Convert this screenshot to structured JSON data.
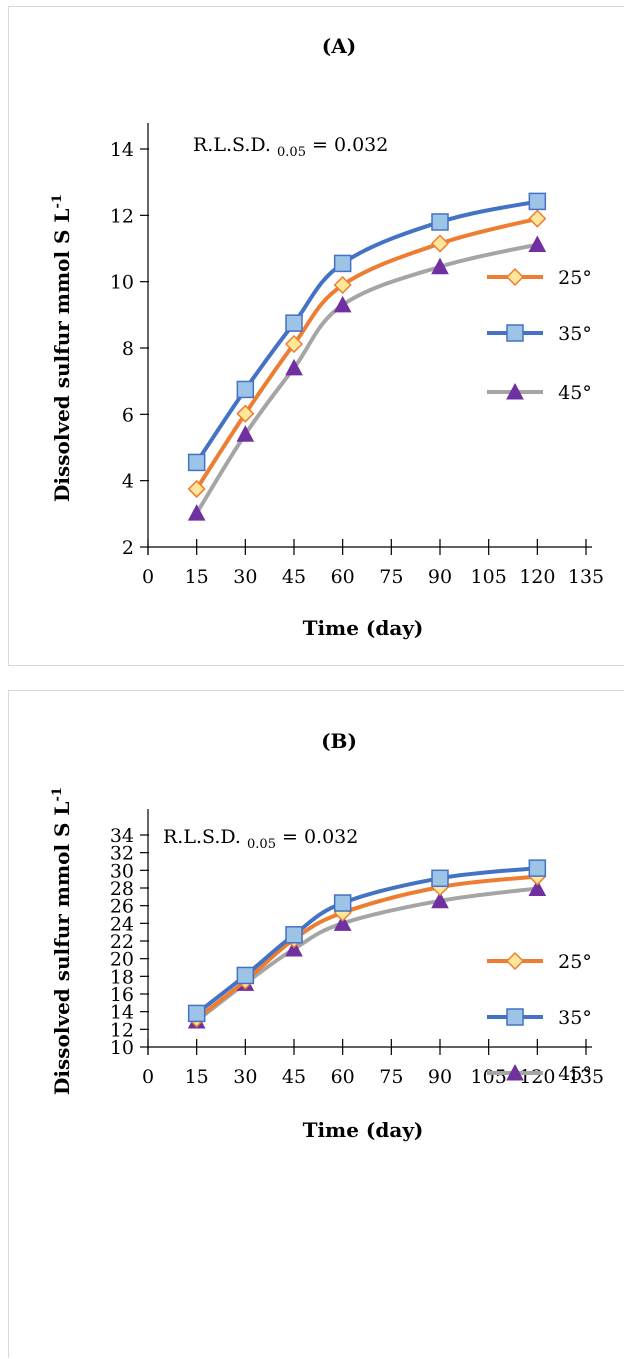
{
  "charts": [
    {
      "title": "(A)",
      "annotation": {
        "prefix": "R.L.S.D. ",
        "sub": "0.05",
        "suffix": " = 0.032"
      },
      "xlabel": "Time (day)",
      "ylabel": "Dissolved sulfur mmol S L",
      "ylabel_sup": "-1"
    },
    {
      "title": "(B)",
      "annotation": {
        "prefix": "R.L.S.D. ",
        "sub": "0.05",
        "suffix": " = 0.032"
      },
      "xlabel": "Time (day)",
      "ylabel": "Dissolved sulfur mmol S L",
      "ylabel_sup": "-1"
    }
  ],
  "chart_data": [
    {
      "type": "line",
      "title": "(A)",
      "xlabel": "Time (day)",
      "ylabel": "Dissolved sulfur mmol S L-1",
      "xlim": [
        0,
        135
      ],
      "ylim": [
        2,
        14
      ],
      "xticks": [
        0,
        15,
        30,
        45,
        60,
        75,
        90,
        105,
        120,
        135
      ],
      "yticks": [
        2,
        4,
        6,
        8,
        10,
        12,
        14
      ],
      "x": [
        15,
        30,
        45,
        60,
        90,
        120
      ],
      "series": [
        {
          "name": "25°",
          "color": "#ED7D31",
          "marker": "diamond",
          "marker_fill": "#FFE699",
          "values": [
            3.75,
            6.02,
            8.12,
            9.9,
            11.15,
            11.9
          ]
        },
        {
          "name": "35°",
          "color": "#4472C4",
          "marker": "square",
          "marker_fill": "#9DC3E6",
          "values": [
            4.55,
            6.75,
            8.75,
            10.55,
            11.8,
            12.42
          ]
        },
        {
          "name": "45°",
          "color": "#A5A5A5",
          "marker": "triangle",
          "marker_fill": "#7030A0",
          "values": [
            3.02,
            5.4,
            7.4,
            9.3,
            10.45,
            11.12
          ]
        }
      ],
      "legend": "right",
      "grid": false
    },
    {
      "type": "line",
      "title": "(B)",
      "xlabel": "Time (day)",
      "ylabel": "Dissolved sulfur mmol S L-1",
      "xlim": [
        0,
        135
      ],
      "ylim": [
        10,
        34
      ],
      "xticks": [
        0,
        15,
        30,
        45,
        60,
        75,
        90,
        105,
        120,
        135
      ],
      "yticks": [
        10,
        12,
        14,
        16,
        18,
        20,
        22,
        24,
        26,
        28,
        30,
        32,
        34
      ],
      "x": [
        15,
        30,
        45,
        60,
        90,
        120
      ],
      "series": [
        {
          "name": "25°",
          "color": "#ED7D31",
          "marker": "diamond",
          "marker_fill": "#FFE699",
          "values": [
            13.2,
            17.5,
            22.2,
            25.2,
            28.1,
            29.3
          ]
        },
        {
          "name": "35°",
          "color": "#4472C4",
          "marker": "square",
          "marker_fill": "#9DC3E6",
          "values": [
            13.8,
            18.1,
            22.7,
            26.3,
            29.1,
            30.25
          ]
        },
        {
          "name": "45°",
          "color": "#A5A5A5",
          "marker": "triangle",
          "marker_fill": "#7030A0",
          "values": [
            12.95,
            17.2,
            21.1,
            24.0,
            26.55,
            27.95
          ]
        }
      ],
      "legend": "right",
      "grid": false
    }
  ]
}
